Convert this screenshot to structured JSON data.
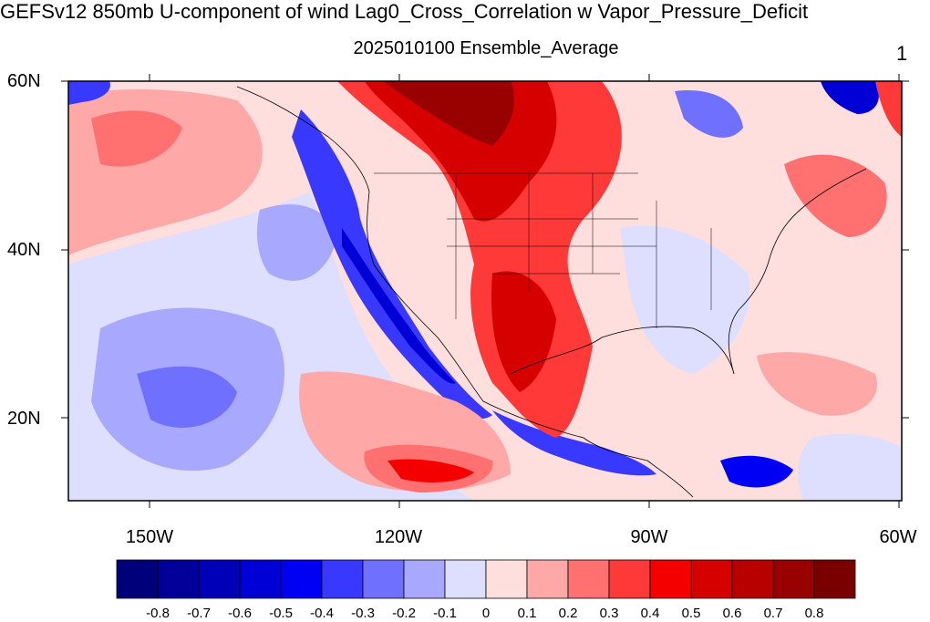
{
  "title": "GEFSv12 850mb U-component of wind Lag0_Cross_Correlation w Vapor_Pressure_Deficit",
  "subtitle": "2025010100 Ensemble_Average",
  "panel_number": "1",
  "lat_labels": [
    "60N",
    "40N",
    "20N"
  ],
  "lon_labels": [
    "150W",
    "120W",
    "90W",
    "60W"
  ],
  "colorbar": {
    "labels": [
      "-0.8",
      "-0.7",
      "-0.6",
      "-0.5",
      "-0.4",
      "-0.3",
      "-0.2",
      "-0.1",
      "0",
      "0.1",
      "0.2",
      "0.3",
      "0.4",
      "0.5",
      "0.6",
      "0.7",
      "0.8"
    ],
    "colors": [
      "#00007a",
      "#000099",
      "#0000b8",
      "#0000d6",
      "#0000f5",
      "#3838ff",
      "#7070ff",
      "#a8a8ff",
      "#dedeff",
      "#ffdede",
      "#ffa8a8",
      "#ff7070",
      "#ff3838",
      "#f50000",
      "#d60000",
      "#b80000",
      "#990000",
      "#7a0000"
    ]
  },
  "map": {
    "lon_range": [
      -160,
      -60
    ],
    "lat_range": [
      10,
      60
    ]
  }
}
